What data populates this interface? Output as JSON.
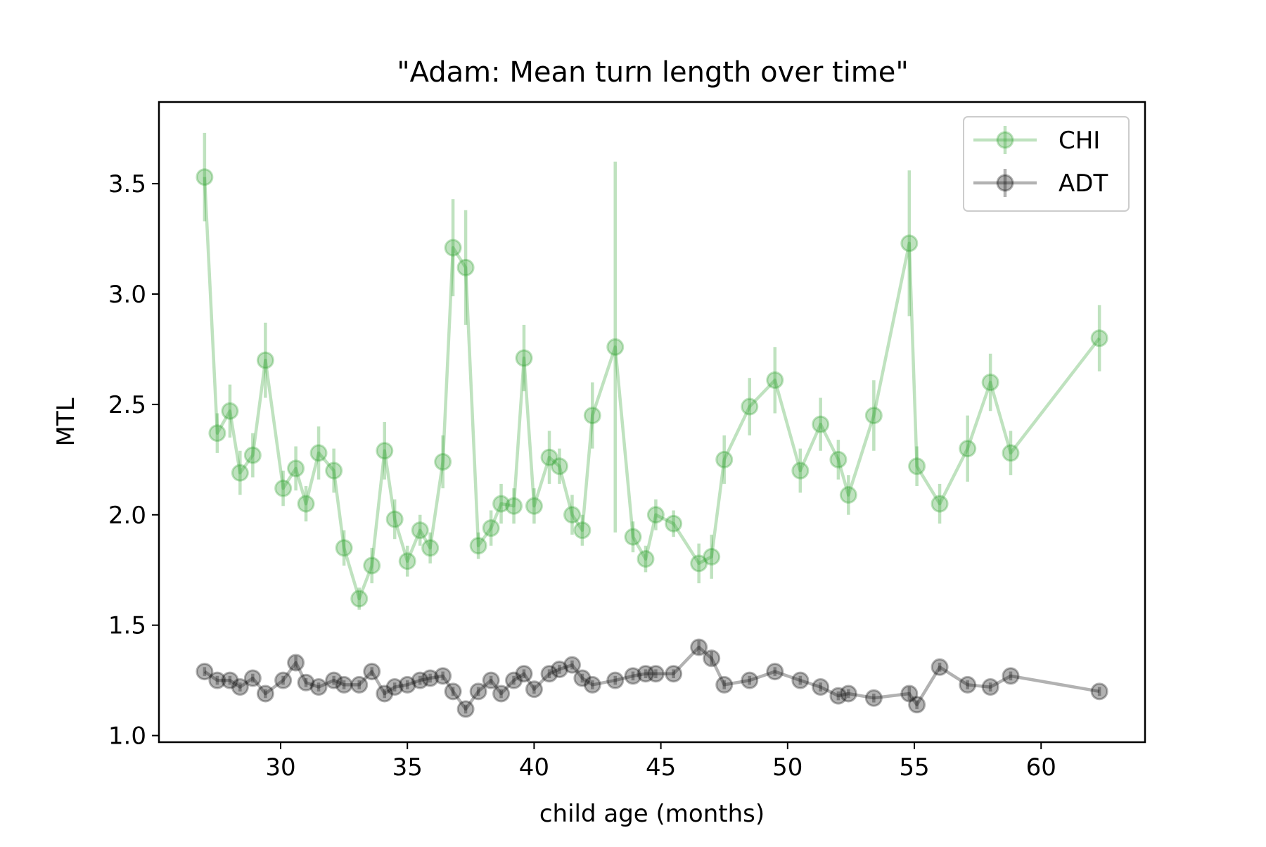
{
  "chart_data": {
    "type": "line",
    "title": "\"Adam: Mean turn length over time\"",
    "xlabel": "child age (months)",
    "ylabel": "MTL",
    "xlim": [
      25.2,
      64.1
    ],
    "ylim": [
      0.97,
      3.87
    ],
    "xticks": [
      30,
      35,
      40,
      45,
      50,
      55,
      60
    ],
    "yticks": [
      1.0,
      1.5,
      2.0,
      2.5,
      3.0,
      3.5
    ],
    "xtick_labels": [
      "30",
      "35",
      "40",
      "45",
      "50",
      "55",
      "60"
    ],
    "ytick_labels": [
      "1.0",
      "1.5",
      "2.0",
      "2.5",
      "3.0",
      "3.5"
    ],
    "grid": false,
    "legend": {
      "position": "top-right",
      "entries": [
        "CHI",
        "ADT"
      ]
    },
    "series": [
      {
        "name": "CHI",
        "color": "#2ca02c",
        "x": [
          27.0,
          27.5,
          28.0,
          28.4,
          28.9,
          29.4,
          30.1,
          30.6,
          31.0,
          31.5,
          32.1,
          32.5,
          33.1,
          33.6,
          34.1,
          34.5,
          35.0,
          35.5,
          35.9,
          36.4,
          36.8,
          37.3,
          37.8,
          38.3,
          38.7,
          39.2,
          39.6,
          40.0,
          40.6,
          41.0,
          41.5,
          41.9,
          42.3,
          43.2,
          43.9,
          44.4,
          44.8,
          45.5,
          46.5,
          47.0,
          47.5,
          48.5,
          49.5,
          50.5,
          51.3,
          52.0,
          52.4,
          53.4,
          54.8,
          55.1,
          56.0,
          57.1,
          58.0,
          58.8,
          62.3
        ],
        "y": [
          3.53,
          2.37,
          2.47,
          2.19,
          2.27,
          2.7,
          2.12,
          2.21,
          2.05,
          2.28,
          2.2,
          1.85,
          1.62,
          1.77,
          2.29,
          1.98,
          1.79,
          1.93,
          1.85,
          2.24,
          3.21,
          3.12,
          1.86,
          1.94,
          2.05,
          2.04,
          2.71,
          2.04,
          2.26,
          2.22,
          2.0,
          1.93,
          2.45,
          2.76,
          1.9,
          1.8,
          2.0,
          1.96,
          1.78,
          1.81,
          2.25,
          2.49,
          2.61,
          2.2,
          2.41,
          2.25,
          2.09,
          2.45,
          3.23,
          2.22,
          2.05,
          2.3,
          2.6,
          2.28,
          2.8
        ],
        "yerr": [
          0.2,
          0.09,
          0.12,
          0.1,
          0.1,
          0.17,
          0.08,
          0.1,
          0.08,
          0.12,
          0.1,
          0.08,
          0.05,
          0.08,
          0.13,
          0.09,
          0.07,
          0.07,
          0.07,
          0.12,
          0.22,
          0.26,
          0.06,
          0.08,
          0.09,
          0.08,
          0.15,
          0.08,
          0.12,
          0.08,
          0.09,
          0.07,
          0.15,
          0.84,
          0.07,
          0.06,
          0.07,
          0.06,
          0.09,
          0.1,
          0.11,
          0.13,
          0.15,
          0.1,
          0.12,
          0.09,
          0.09,
          0.16,
          0.33,
          0.09,
          0.09,
          0.15,
          0.13,
          0.1,
          0.15
        ]
      },
      {
        "name": "ADT",
        "color": "#000000",
        "x": [
          27.0,
          27.5,
          28.0,
          28.4,
          28.9,
          29.4,
          30.1,
          30.6,
          31.0,
          31.5,
          32.1,
          32.5,
          33.1,
          33.6,
          34.1,
          34.5,
          35.0,
          35.5,
          35.9,
          36.4,
          36.8,
          37.3,
          37.8,
          38.3,
          38.7,
          39.2,
          39.6,
          40.0,
          40.6,
          41.0,
          41.5,
          41.9,
          42.3,
          43.2,
          43.9,
          44.4,
          44.8,
          45.5,
          46.5,
          47.0,
          47.5,
          48.5,
          49.5,
          50.5,
          51.3,
          52.0,
          52.4,
          53.4,
          54.8,
          55.1,
          56.0,
          57.1,
          58.0,
          58.8,
          62.3
        ],
        "y": [
          1.29,
          1.25,
          1.25,
          1.22,
          1.26,
          1.19,
          1.25,
          1.33,
          1.24,
          1.22,
          1.25,
          1.23,
          1.23,
          1.29,
          1.19,
          1.22,
          1.23,
          1.25,
          1.26,
          1.27,
          1.2,
          1.12,
          1.2,
          1.25,
          1.19,
          1.25,
          1.28,
          1.21,
          1.28,
          1.3,
          1.32,
          1.26,
          1.23,
          1.25,
          1.27,
          1.28,
          1.28,
          1.28,
          1.4,
          1.35,
          1.23,
          1.25,
          1.29,
          1.25,
          1.22,
          1.18,
          1.19,
          1.17,
          1.19,
          1.14,
          1.31,
          1.23,
          1.22,
          1.27,
          1.2
        ],
        "yerr": [
          0.02,
          0.02,
          0.02,
          0.02,
          0.02,
          0.02,
          0.02,
          0.03,
          0.02,
          0.02,
          0.02,
          0.02,
          0.02,
          0.02,
          0.02,
          0.02,
          0.02,
          0.02,
          0.02,
          0.02,
          0.02,
          0.02,
          0.02,
          0.02,
          0.02,
          0.02,
          0.02,
          0.02,
          0.02,
          0.02,
          0.02,
          0.02,
          0.02,
          0.02,
          0.02,
          0.02,
          0.02,
          0.02,
          0.03,
          0.03,
          0.02,
          0.02,
          0.02,
          0.02,
          0.02,
          0.02,
          0.02,
          0.02,
          0.03,
          0.02,
          0.02,
          0.02,
          0.02,
          0.02,
          0.02
        ]
      }
    ]
  }
}
